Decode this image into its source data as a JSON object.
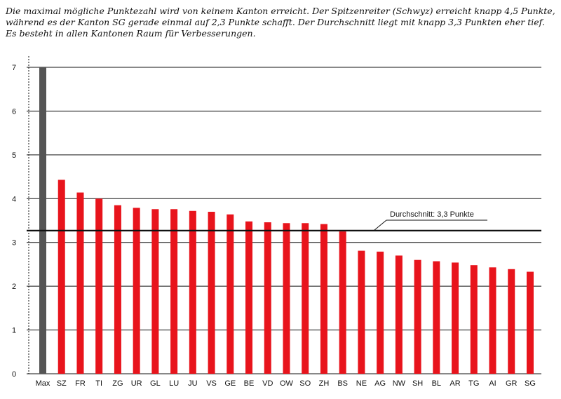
{
  "caption": {
    "line1": "Die maximal mögliche Punktezahl wird von keinem Kanton erreicht. Der Spitzenreiter (Schwyz) erreicht knapp 4,5 Punkte,",
    "line2": "während es der Kanton SG gerade einmal auf 2,3 Punkte schafft. Der Durchschnitt liegt mit knapp 3,3 Punkten eher tief.",
    "line3": "Es besteht in allen Kantonen Raum für Verbesserungen."
  },
  "chart_data": {
    "type": "bar",
    "categories": [
      "Max",
      "SZ",
      "FR",
      "TI",
      "ZG",
      "UR",
      "GL",
      "LU",
      "JU",
      "VS",
      "GE",
      "BE",
      "VD",
      "OW",
      "SO",
      "ZH",
      "BS",
      "NE",
      "AG",
      "NW",
      "SH",
      "BL",
      "AR",
      "TG",
      "AI",
      "GR",
      "SG"
    ],
    "values": [
      7,
      4.43,
      4.14,
      4.0,
      3.85,
      3.79,
      3.76,
      3.76,
      3.72,
      3.7,
      3.64,
      3.48,
      3.46,
      3.44,
      3.44,
      3.42,
      3.25,
      2.81,
      2.79,
      2.7,
      2.6,
      2.57,
      2.54,
      2.48,
      2.43,
      2.39,
      2.33
    ],
    "yticks": [
      0,
      1,
      2,
      3,
      4,
      5,
      6,
      7
    ],
    "ylim": [
      0,
      7
    ],
    "grid": true,
    "average": {
      "value": 3.27,
      "label": "Durchschnitt: 3,3 Punkte"
    },
    "colors": {
      "max_bar": "#555555",
      "bar": "#e8141c",
      "grid": "#111111"
    }
  }
}
